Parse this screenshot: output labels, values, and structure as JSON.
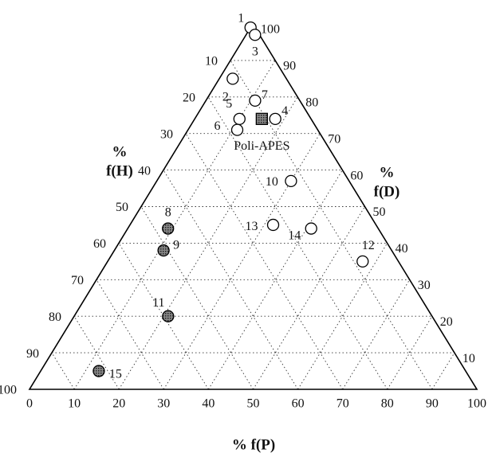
{
  "chart_data": {
    "type": "ternary",
    "bottom_title": "% f(P)",
    "left_title": [
      "%",
      "f(H)"
    ],
    "right_title": [
      "%",
      "f(D)"
    ],
    "pticks": [
      0,
      10,
      20,
      30,
      40,
      50,
      60,
      70,
      80,
      90,
      100
    ],
    "hticks": [
      10,
      20,
      30,
      40,
      50,
      60,
      70,
      80,
      90,
      100
    ],
    "dticks": [
      10,
      20,
      30,
      40,
      50,
      60,
      70,
      80,
      90,
      100
    ],
    "grid": true,
    "points": [
      {
        "label": "1",
        "p": 0,
        "d": 99,
        "filled": false,
        "marker": "circle"
      },
      {
        "label": "3",
        "p": 2,
        "d": 97,
        "filled": false,
        "marker": "circle"
      },
      {
        "label": "2",
        "p": 3,
        "d": 85,
        "filled": false,
        "marker": "circle"
      },
      {
        "label": "7",
        "p": 11,
        "d": 79,
        "filled": false,
        "marker": "circle"
      },
      {
        "label": "4",
        "p": 18,
        "d": 74,
        "filled": false,
        "marker": "circle"
      },
      {
        "label": "Poli-APES",
        "p": 15,
        "d": 74,
        "filled": true,
        "marker": "square"
      },
      {
        "label": "5",
        "p": 10,
        "d": 74,
        "filled": false,
        "marker": "circle"
      },
      {
        "label": "6",
        "p": 11,
        "d": 71,
        "filled": false,
        "marker": "circle"
      },
      {
        "label": "10",
        "p": 30,
        "d": 57,
        "filled": false,
        "marker": "circle"
      },
      {
        "label": "13",
        "p": 32,
        "d": 45,
        "filled": false,
        "marker": "circle"
      },
      {
        "label": "14",
        "p": 41,
        "d": 44,
        "filled": false,
        "marker": "circle"
      },
      {
        "label": "12",
        "p": 57,
        "d": 35,
        "filled": false,
        "marker": "circle"
      },
      {
        "label": "8",
        "p": 9,
        "d": 44,
        "filled": true,
        "marker": "circle"
      },
      {
        "label": "9",
        "p": 11,
        "d": 38,
        "filled": true,
        "marker": "circle"
      },
      {
        "label": "11",
        "p": 21,
        "d": 20,
        "filled": true,
        "marker": "circle"
      },
      {
        "label": "15",
        "p": 13,
        "d": 5,
        "filled": true,
        "marker": "circle"
      }
    ]
  }
}
